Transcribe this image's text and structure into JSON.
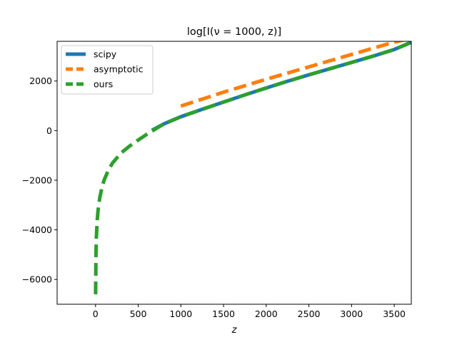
{
  "chart_data": {
    "type": "line",
    "title": "log[I(ν = 1000, z)]",
    "xlabel": "z",
    "ylabel": "",
    "xlim": [
      -450,
      3700
    ],
    "ylim": [
      -7000,
      3600
    ],
    "xticks": [
      0,
      500,
      1000,
      1500,
      2000,
      2500,
      3000,
      3500
    ],
    "xtick_labels": [
      "0",
      "500",
      "1000",
      "1500",
      "2000",
      "2500",
      "3000",
      "3500"
    ],
    "yticks": [
      -6000,
      -4000,
      -2000,
      0,
      2000
    ],
    "ytick_labels": [
      "−6000",
      "−4000",
      "−2000",
      "0",
      "2000"
    ],
    "grid": false,
    "legend_position": "top-left",
    "series": [
      {
        "name": "scipy",
        "color": "#1f77b4",
        "style": "solid",
        "x": [
          660,
          800,
          1000,
          1250,
          1500,
          1750,
          2000,
          2250,
          2500,
          2750,
          3000,
          3250,
          3500,
          3700
        ],
        "y": [
          10,
          270,
          560,
          860,
          1150,
          1440,
          1720,
          1990,
          2250,
          2500,
          2750,
          3000,
          3270,
          3560
        ]
      },
      {
        "name": "asymptotic",
        "color": "#ff7f0e",
        "style": "dashed",
        "x": [
          1000,
          1250,
          1500,
          1750,
          2000,
          2250,
          2500,
          2750,
          3000,
          3250,
          3500,
          3700
        ],
        "y": [
          990,
          1270,
          1550,
          1810,
          2070,
          2320,
          2570,
          2820,
          3070,
          3320,
          3570,
          3720
        ]
      },
      {
        "name": "ours",
        "color": "#2ca02c",
        "style": "dashed",
        "x": [
          1,
          5,
          10,
          20,
          30,
          50,
          75,
          100,
          150,
          200,
          300,
          400,
          500,
          600,
          700,
          800,
          1000,
          1250,
          1500,
          1750,
          2000,
          2250,
          2500,
          2750,
          3000,
          3250,
          3500,
          3700
        ],
        "y": [
          -6600,
          -5000,
          -4300,
          -3600,
          -3200,
          -2700,
          -2300,
          -2000,
          -1600,
          -1300,
          -900,
          -620,
          -380,
          -150,
          60,
          270,
          560,
          860,
          1150,
          1440,
          1720,
          1990,
          2250,
          2500,
          2750,
          3000,
          3270,
          3560
        ]
      }
    ]
  }
}
